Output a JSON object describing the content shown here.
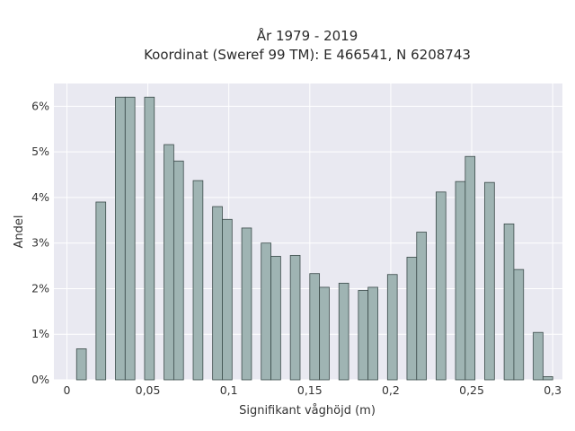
{
  "chart_data": {
    "type": "bar",
    "title_line1": "År 1979 - 2019",
    "title_line2": "Koordinat (Sweref 99 TM): E 466541, N 6208743",
    "xlabel": "Signifikant våghöjd (m)",
    "ylabel": "Andel",
    "xlim": [
      -0.008,
      0.306
    ],
    "ylim": [
      0,
      6.5
    ],
    "bin_width": 0.006,
    "x_ticks": [
      0,
      0.05,
      0.1,
      0.15,
      0.2,
      0.25,
      0.3
    ],
    "x_tick_labels": [
      "0",
      "0,05",
      "0,1",
      "0,15",
      "0,2",
      "0,25",
      "0,3"
    ],
    "y_ticks": [
      0,
      1,
      2,
      3,
      4,
      5,
      6
    ],
    "y_tick_labels": [
      "0%",
      "1%",
      "2%",
      "3%",
      "4%",
      "5%",
      "6%"
    ],
    "grid": true,
    "colors": {
      "bar_fill": "#9fb4b3",
      "bar_edge": "#3a4a49",
      "plot_bg": "#e9e9f1"
    },
    "bars": [
      {
        "x": 0.009,
        "y": 0.68
      },
      {
        "x": 0.021,
        "y": 3.9
      },
      {
        "x": 0.033,
        "y": 6.2
      },
      {
        "x": 0.039,
        "y": 6.2
      },
      {
        "x": 0.051,
        "y": 6.2
      },
      {
        "x": 0.063,
        "y": 5.16
      },
      {
        "x": 0.069,
        "y": 4.8
      },
      {
        "x": 0.081,
        "y": 4.37
      },
      {
        "x": 0.093,
        "y": 3.8
      },
      {
        "x": 0.099,
        "y": 3.52
      },
      {
        "x": 0.111,
        "y": 3.33
      },
      {
        "x": 0.123,
        "y": 3.0
      },
      {
        "x": 0.129,
        "y": 2.71
      },
      {
        "x": 0.141,
        "y": 2.73
      },
      {
        "x": 0.153,
        "y": 2.33
      },
      {
        "x": 0.159,
        "y": 2.03
      },
      {
        "x": 0.171,
        "y": 2.12
      },
      {
        "x": 0.183,
        "y": 1.96
      },
      {
        "x": 0.189,
        "y": 2.03
      },
      {
        "x": 0.201,
        "y": 2.31
      },
      {
        "x": 0.213,
        "y": 2.69
      },
      {
        "x": 0.219,
        "y": 3.24
      },
      {
        "x": 0.231,
        "y": 4.12
      },
      {
        "x": 0.243,
        "y": 4.35
      },
      {
        "x": 0.249,
        "y": 4.9
      },
      {
        "x": 0.261,
        "y": 4.33
      },
      {
        "x": 0.273,
        "y": 3.42
      },
      {
        "x": 0.279,
        "y": 2.42
      },
      {
        "x": 0.291,
        "y": 1.04
      },
      {
        "x": 0.297,
        "y": 0.07
      }
    ]
  }
}
